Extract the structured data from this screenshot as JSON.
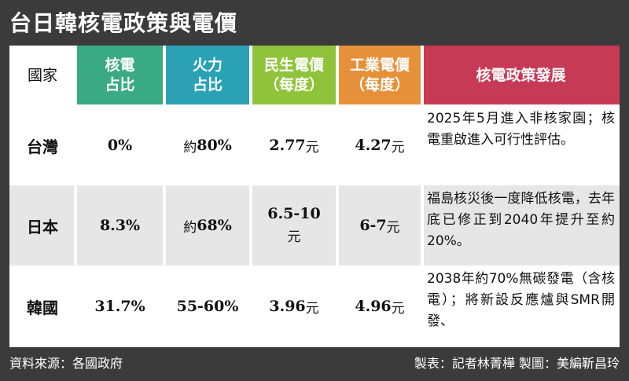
{
  "title": "台日韓核電政策與電價",
  "headers": {
    "country": "國家",
    "nuclear": [
      "核電",
      "占比"
    ],
    "thermal": [
      "火力",
      "占比"
    ],
    "residential": [
      "民生電價",
      "（每度）"
    ],
    "industrial": [
      "工業電價",
      "（每度）"
    ],
    "policy": "核電政策發展"
  },
  "rows": [
    {
      "country": "台灣",
      "nuclear": "0%",
      "thermal_prefix": "約",
      "thermal": "80%",
      "residential": "2.77",
      "residential_unit": "元",
      "industrial": "4.27",
      "industrial_unit": "元",
      "policy": "2025年5月進入非核家園；核電重啟進入可行性評估。"
    },
    {
      "country": "日本",
      "nuclear": "8.3%",
      "thermal_prefix": "約",
      "thermal": "68%",
      "residential": "6.5-10",
      "residential_unit": "元",
      "industrial": "6-7",
      "industrial_unit": "元",
      "policy": "福島核災後一度降低核電，去年底已修正到2040年提升至約20%。"
    },
    {
      "country": "韓國",
      "nuclear": "31.7%",
      "thermal_prefix": "",
      "thermal": "55-60%",
      "residential": "3.96",
      "residential_unit": "元",
      "industrial": "4.96",
      "industrial_unit": "元",
      "policy": "2038年約70%無碳發電（含核電）；將新設反應爐與SMR開發、"
    }
  ],
  "footer": {
    "source": "資料來源：各國政府",
    "credits": "製表：記者林菁樺 製圖：美編靳昌玲"
  },
  "colors": {
    "nuclear": "#3aaa85",
    "thermal": "#2aa1b5",
    "residential": "#8fc43a",
    "industrial": "#e6913a",
    "policy": "#c73a55",
    "row_alt": "#e6e6e6"
  }
}
